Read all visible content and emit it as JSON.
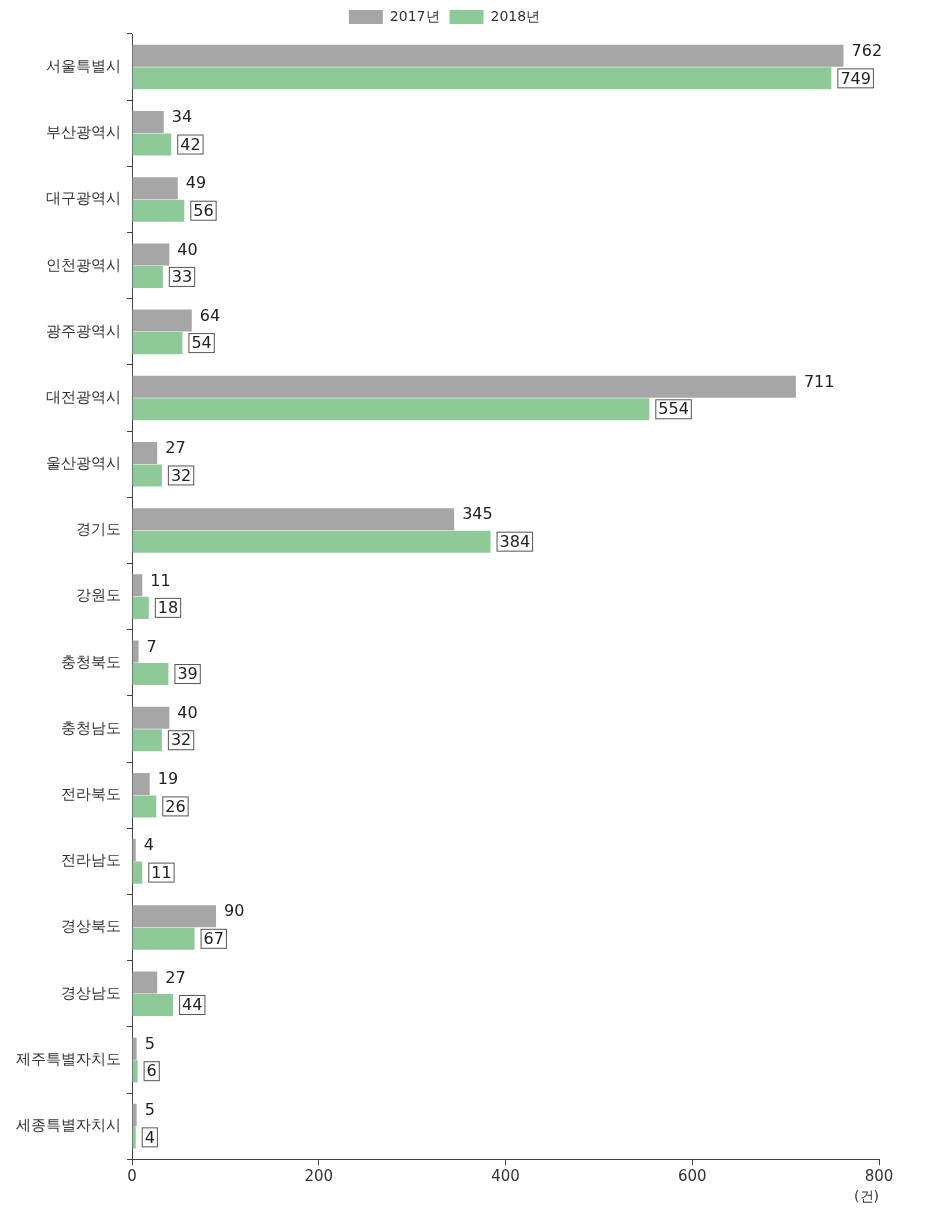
{
  "chart_data": {
    "type": "bar",
    "orientation": "horizontal",
    "categories": [
      "서울특별시",
      "부산광역시",
      "대구광역시",
      "인천광역시",
      "광주광역시",
      "대전광역시",
      "울산광역시",
      "경기도",
      "강원도",
      "충청북도",
      "충청남도",
      "전라북도",
      "전라남도",
      "경상북도",
      "경상남도",
      "제주특별자치도",
      "세종특별자치시"
    ],
    "series": [
      {
        "name": "2017년",
        "color": "#a6a6a6",
        "values": [
          762,
          34,
          49,
          40,
          64,
          711,
          27,
          345,
          11,
          7,
          40,
          19,
          4,
          90,
          27,
          5,
          5
        ]
      },
      {
        "name": "2018년",
        "color": "#8dca98",
        "values": [
          749,
          42,
          56,
          33,
          54,
          554,
          32,
          384,
          18,
          39,
          32,
          26,
          11,
          67,
          44,
          6,
          4
        ]
      }
    ],
    "x_label": "(건)",
    "xlim": [
      0,
      800
    ],
    "xticks": [
      0,
      200,
      400,
      600,
      800
    ],
    "grid": false,
    "legend": "top",
    "data_labels": true
  }
}
